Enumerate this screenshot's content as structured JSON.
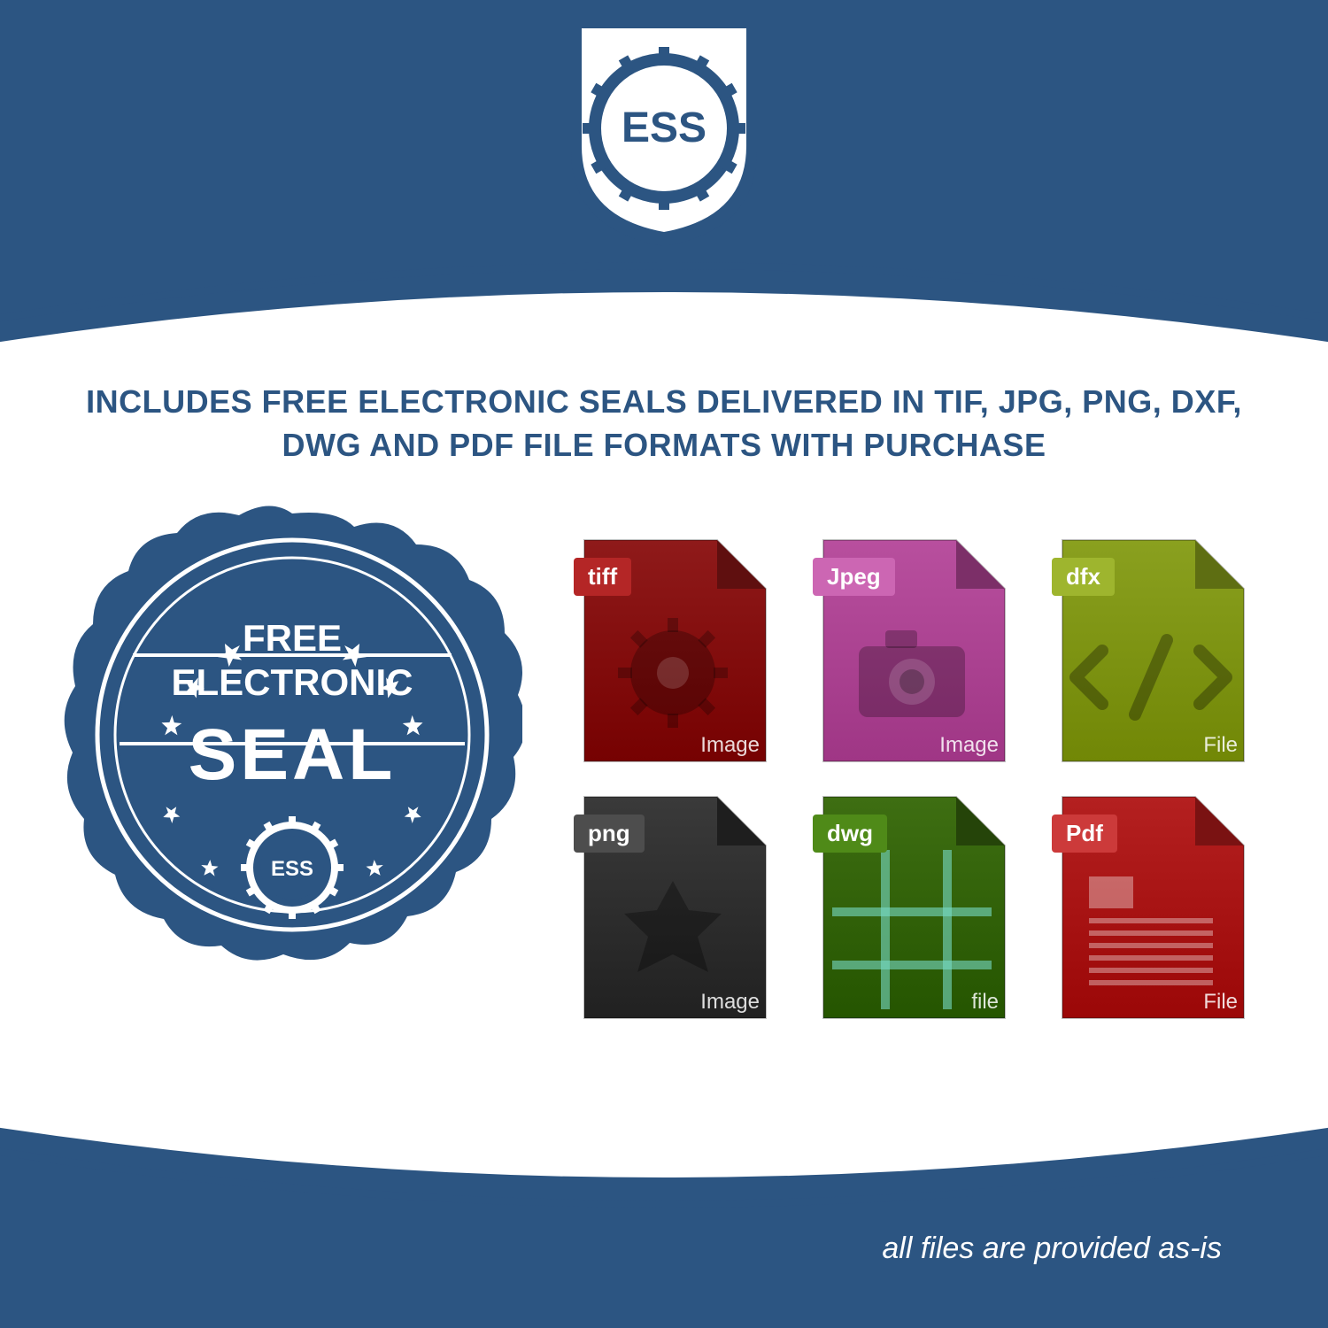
{
  "colors": {
    "brand_blue": "#2c5582",
    "white": "#ffffff"
  },
  "logo": {
    "text": "ESS",
    "text_color": "#2c5582",
    "bg_color": "#ffffff",
    "shield_color": "#2c5582"
  },
  "headline": "INCLUDES FREE ELECTRONIC SEALS DELIVERED IN TIF, JPG, PNG, DXF, DWG AND PDF FILE FORMATS WITH PURCHASE",
  "headline_fontsize": 36,
  "seal": {
    "line1": "FREE",
    "line2": "ELECTRONIC",
    "line3": "SEAL",
    "ess_text": "ESS",
    "fill": "#2c5582",
    "text_color": "#ffffff"
  },
  "files": [
    {
      "tab": "tiff",
      "footer": "Image",
      "body_color": "#8f1a1a",
      "fold_color": "#5f0f0f",
      "tab_color": "#b42626",
      "icon": "gear"
    },
    {
      "tab": "Jpeg",
      "footer": "Image",
      "body_color": "#b84f9e",
      "fold_color": "#7c2f68",
      "tab_color": "#cc66b3",
      "icon": "camera"
    },
    {
      "tab": "dfx",
      "footer": "File",
      "body_color": "#8aa01f",
      "fold_color": "#5e6e12",
      "tab_color": "#9eb52e",
      "icon": "code"
    },
    {
      "tab": "png",
      "footer": "Image",
      "body_color": "#3a3a3a",
      "fold_color": "#1e1e1e",
      "tab_color": "#4d4d4d",
      "icon": "starburst"
    },
    {
      "tab": "dwg",
      "footer": "file",
      "body_color": "#3e6e12",
      "fold_color": "#254409",
      "tab_color": "#4f8a18",
      "icon": "grid"
    },
    {
      "tab": "Pdf",
      "footer": "File",
      "body_color": "#b42020",
      "fold_color": "#7a1212",
      "tab_color": "#cc3a3a",
      "icon": "doc"
    }
  ],
  "disclaimer": "all files are provided as-is"
}
